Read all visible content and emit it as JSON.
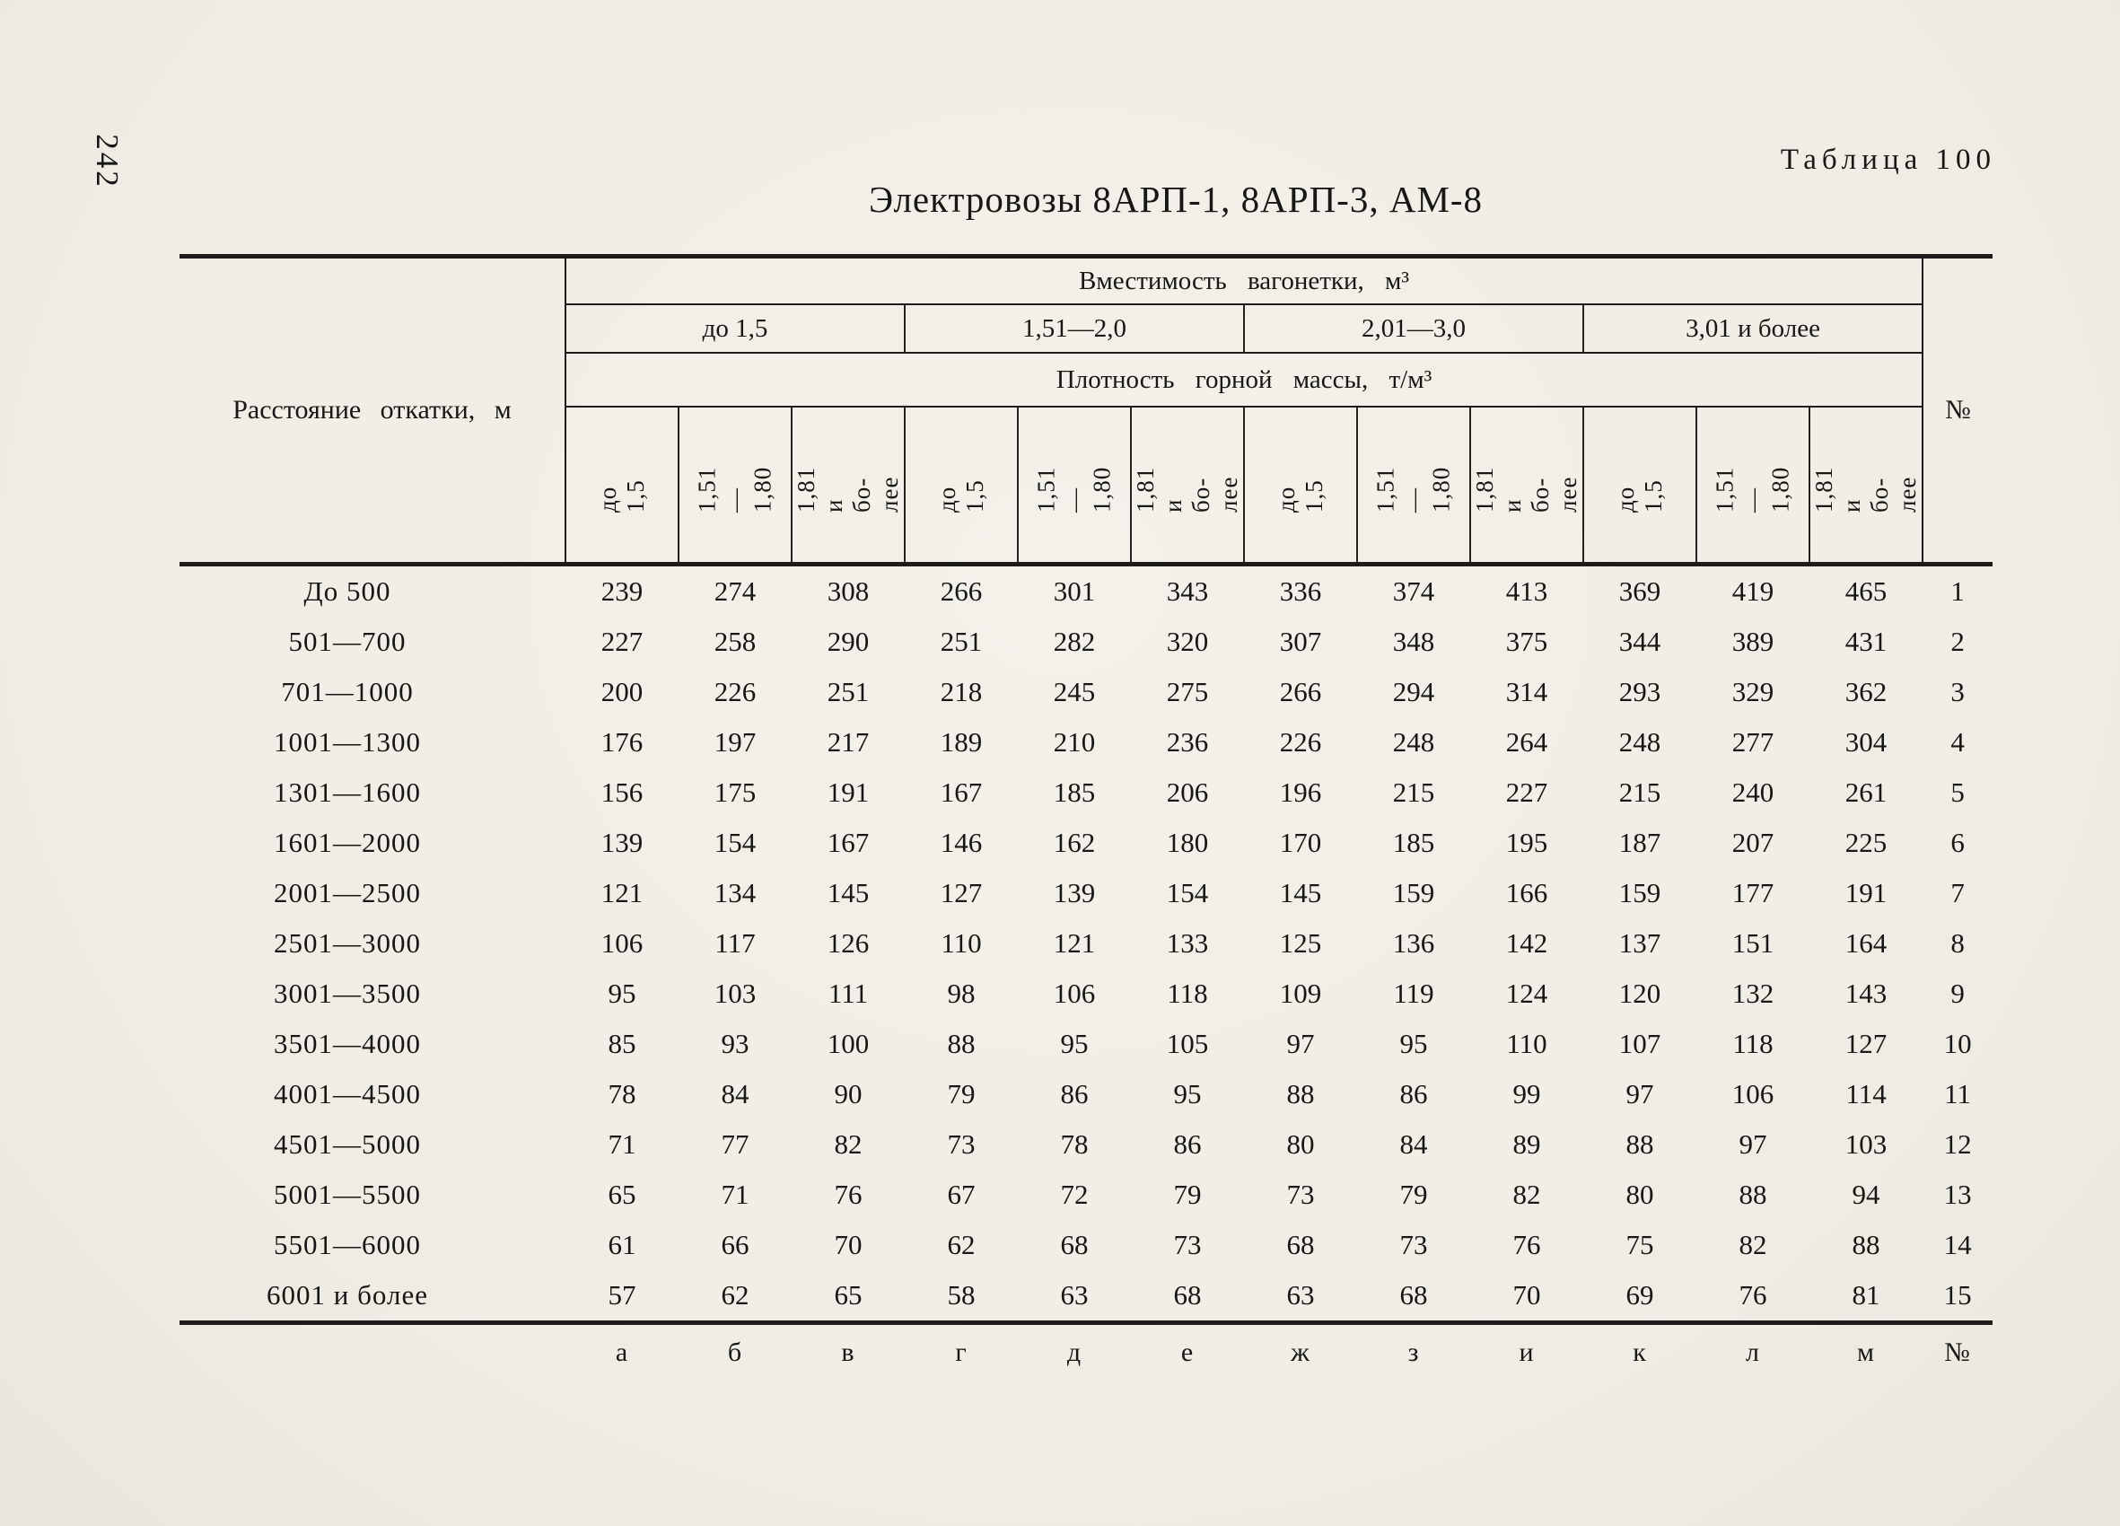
{
  "colors": {
    "paper": "#efede5",
    "ink": "#1d1c1a"
  },
  "page_number": "242",
  "title": "Электровозы 8АРП-1, 8АРП-3, АМ-8",
  "table_caption": "Таблица 100",
  "table": {
    "col1_header": "Расстояние откатки, м",
    "capacity_header": "Вместимость вагонетки, м³",
    "capacity_groups": [
      "до 1,5",
      "1,51—2,0",
      "2,01—3,0",
      "3,01 и более"
    ],
    "density_header": "Плотность горной массы, т/м³",
    "no_header": "№",
    "density_cols": [
      "до 1,5",
      "1,51—1,80",
      "1,81 и бо-\nлее",
      "до 1,5",
      "1,51—1,80",
      "1,81 и бо-\nлее",
      "до 1,5",
      "1,51—1,80",
      "1,81 и бо-\nлее",
      "до 1,5",
      "1,51—1,80",
      "1,81 и бо-\nлее"
    ],
    "rows": [
      {
        "label": "До 500",
        "values": [
          "239",
          "274",
          "308",
          "266",
          "301",
          "343",
          "336",
          "374",
          "413",
          "369",
          "419",
          "465"
        ],
        "num": "1"
      },
      {
        "label": "501—700",
        "values": [
          "227",
          "258",
          "290",
          "251",
          "282",
          "320",
          "307",
          "348",
          "375",
          "344",
          "389",
          "431"
        ],
        "num": "2"
      },
      {
        "label": "701—1000",
        "values": [
          "200",
          "226",
          "251",
          "218",
          "245",
          "275",
          "266",
          "294",
          "314",
          "293",
          "329",
          "362"
        ],
        "num": "3"
      },
      {
        "label": "1001—1300",
        "values": [
          "176",
          "197",
          "217",
          "189",
          "210",
          "236",
          "226",
          "248",
          "264",
          "248",
          "277",
          "304"
        ],
        "num": "4"
      },
      {
        "label": "1301—1600",
        "values": [
          "156",
          "175",
          "191",
          "167",
          "185",
          "206",
          "196",
          "215",
          "227",
          "215",
          "240",
          "261"
        ],
        "num": "5"
      },
      {
        "label": "1601—2000",
        "values": [
          "139",
          "154",
          "167",
          "146",
          "162",
          "180",
          "170",
          "185",
          "195",
          "187",
          "207",
          "225"
        ],
        "num": "6"
      },
      {
        "label": "2001—2500",
        "values": [
          "121",
          "134",
          "145",
          "127",
          "139",
          "154",
          "145",
          "159",
          "166",
          "159",
          "177",
          "191"
        ],
        "num": "7"
      },
      {
        "label": "2501—3000",
        "values": [
          "106",
          "117",
          "126",
          "110",
          "121",
          "133",
          "125",
          "136",
          "142",
          "137",
          "151",
          "164"
        ],
        "num": "8"
      },
      {
        "label": "3001—3500",
        "values": [
          "95",
          "103",
          "111",
          "98",
          "106",
          "118",
          "109",
          "119",
          "124",
          "120",
          "132",
          "143"
        ],
        "num": "9"
      },
      {
        "label": "3501—4000",
        "values": [
          "85",
          "93",
          "100",
          "88",
          "95",
          "105",
          "97",
          "95",
          "110",
          "107",
          "118",
          "127"
        ],
        "num": "10"
      },
      {
        "label": "4001—4500",
        "values": [
          "78",
          "84",
          "90",
          "79",
          "86",
          "95",
          "88",
          "86",
          "99",
          "97",
          "106",
          "114"
        ],
        "num": "11"
      },
      {
        "label": "4501—5000",
        "values": [
          "71",
          "77",
          "82",
          "73",
          "78",
          "86",
          "80",
          "84",
          "89",
          "88",
          "97",
          "103"
        ],
        "num": "12"
      },
      {
        "label": "5001—5500",
        "values": [
          "65",
          "71",
          "76",
          "67",
          "72",
          "79",
          "73",
          "79",
          "82",
          "80",
          "88",
          "94"
        ],
        "num": "13"
      },
      {
        "label": "5501—6000",
        "values": [
          "61",
          "66",
          "70",
          "62",
          "68",
          "73",
          "68",
          "73",
          "76",
          "75",
          "82",
          "88"
        ],
        "num": "14"
      },
      {
        "label": "6001 и более",
        "values": [
          "57",
          "62",
          "65",
          "58",
          "63",
          "68",
          "63",
          "68",
          "70",
          "69",
          "76",
          "81"
        ],
        "num": "15"
      }
    ],
    "footer_letters": [
      "а",
      "б",
      "в",
      "г",
      "д",
      "е",
      "ж",
      "з",
      "и",
      "к",
      "л",
      "м"
    ],
    "footer_no": "№"
  }
}
